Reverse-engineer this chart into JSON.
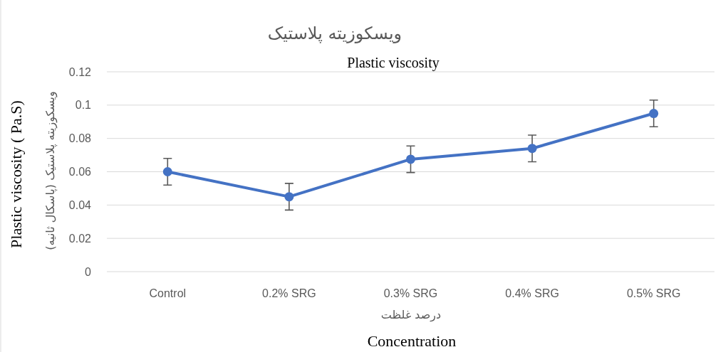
{
  "chart_data": {
    "type": "line",
    "title": "ویسکوزیته پلاستیک",
    "subtitle": "Plastic viscosity",
    "xlabel": "درصد غلظت",
    "ylabel": "ویسکوزیته پلاستیک (پاسکال ثانیه)",
    "annotations": [
      "Plastic viscosity ( Pa.S)",
      "Concentration"
    ],
    "categories": [
      "Control",
      "0.2% SRG",
      "0.3% SRG",
      "0.4% SRG",
      "0.5% SRG"
    ],
    "series": [
      {
        "color": "#4472c4",
        "values": [
          0.06,
          0.045,
          0.0675,
          0.074,
          0.095
        ],
        "errors": [
          0.008,
          0.008,
          0.008,
          0.008,
          0.008
        ]
      }
    ],
    "ylim": [
      0,
      0.12
    ],
    "yticks": [
      0,
      0.02,
      0.04,
      0.06,
      0.08,
      0.1,
      0.12
    ],
    "grid": "y",
    "marker": "circle",
    "line_style": "solid"
  }
}
